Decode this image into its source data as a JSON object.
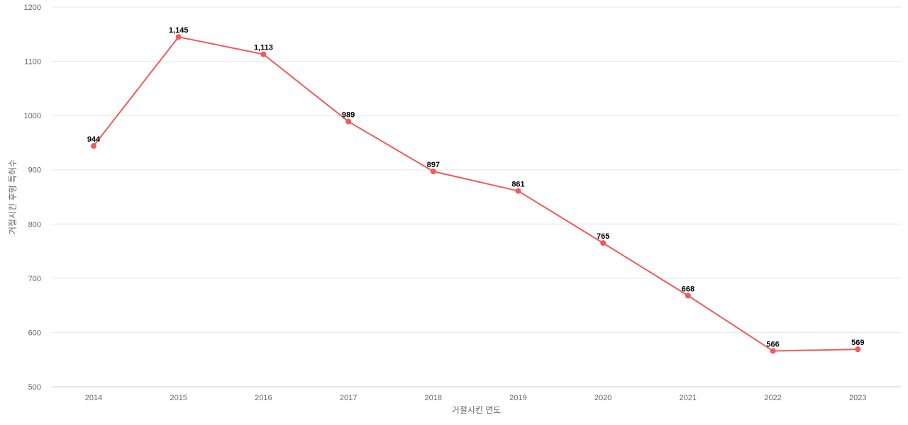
{
  "chart_data": {
    "type": "line",
    "title": "",
    "xlabel": "거절시킨 연도",
    "ylabel": "거절시킨 후행 특허수",
    "categories": [
      "2014",
      "2015",
      "2016",
      "2017",
      "2018",
      "2019",
      "2020",
      "2021",
      "2022",
      "2023"
    ],
    "series": [
      {
        "values": [
          944,
          1145,
          1113,
          989,
          897,
          861,
          765,
          668,
          566,
          569
        ],
        "color": "#ef5b5b"
      }
    ],
    "data_labels": [
      "944",
      "1,145",
      "1,113",
      "989",
      "897",
      "861",
      "765",
      "668",
      "566",
      "569"
    ],
    "ylim": [
      500,
      1200
    ],
    "yticks": [
      500,
      600,
      700,
      800,
      900,
      1000,
      1100,
      1200
    ],
    "grid": true,
    "legend": false
  }
}
